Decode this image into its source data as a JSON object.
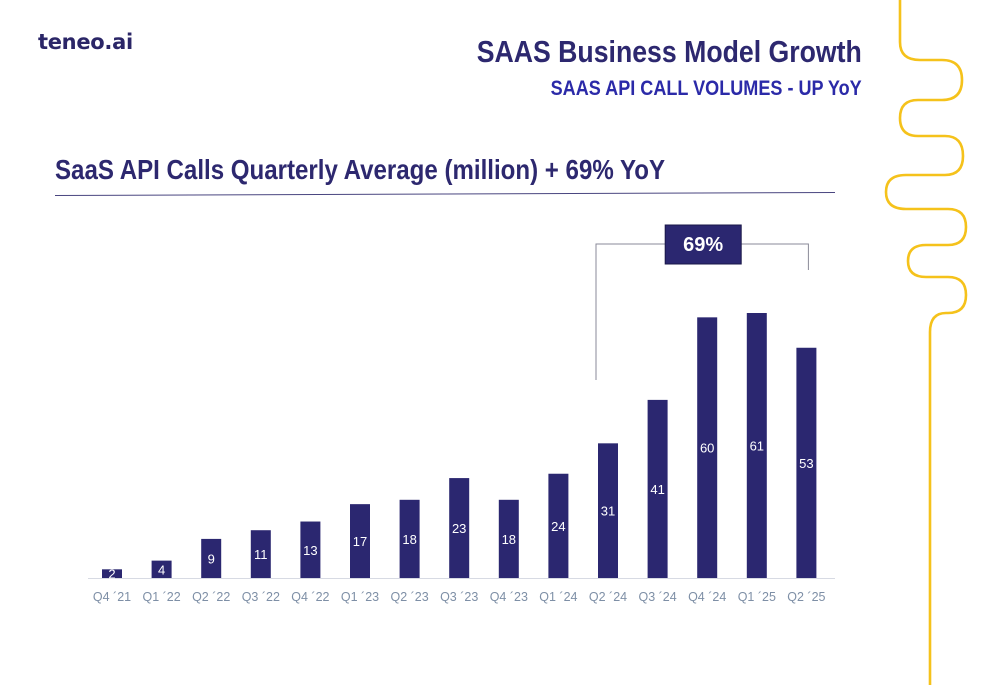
{
  "logo": "teneo.ai",
  "header": {
    "title": "SAAS Business Model Growth",
    "subtitle": "SAAS API CALL VOLUMES -  UP YoY"
  },
  "chart_data": {
    "type": "bar",
    "title": "SaaS API Calls Quarterly Average (million) + 69% YoY",
    "xlabel": "",
    "ylabel": "",
    "categories": [
      "Q4 ´21",
      "Q1 ´22",
      "Q2 ´22",
      "Q3 ´22",
      "Q4 ´22",
      "Q1 ´23",
      "Q2 ´23",
      "Q3 ´23",
      "Q4 ´23",
      "Q1 ´24",
      "Q2 ´24",
      "Q3 ´24",
      "Q4 ´24",
      "Q1 ´25",
      "Q2 ´25"
    ],
    "values": [
      2,
      4,
      9,
      11,
      13,
      17,
      18,
      23,
      18,
      24,
      31,
      41,
      60,
      61,
      53
    ],
    "ylim": [
      0,
      61
    ],
    "grid": false,
    "bar_color": "#2b2770",
    "annotation": {
      "label": "69%",
      "from_category": "Q2 ´24",
      "to_category": "Q2 ´25"
    }
  },
  "colors": {
    "brand_dark": "#2d286f",
    "brand_blue": "#2b2aa8",
    "accent_yellow": "#f5c21b",
    "axis_label": "#7e8fa6"
  }
}
